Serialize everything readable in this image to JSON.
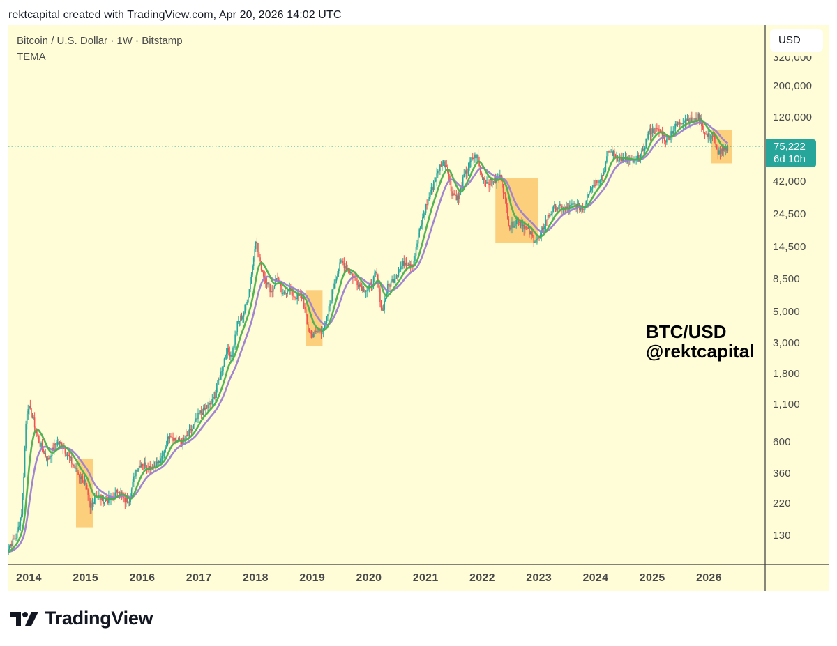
{
  "caption": "rektcapital created with TradingView.com, Apr 20, 2026 14:02 UTC",
  "legend": {
    "symbol_line": "Bitcoin / U.S. Dollar · 1W · Bitstamp",
    "indicator": "TEMA"
  },
  "price_scale": {
    "currency_button": "USD",
    "ticks": [
      "320,000",
      "200,000",
      "120,000",
      "42,000",
      "24,500",
      "14,500",
      "8,500",
      "5,000",
      "3,000",
      "1,800",
      "1,100",
      "600",
      "360",
      "220",
      "130"
    ]
  },
  "last_price": {
    "value": "75,222",
    "countdown": "6d 10h",
    "color": "#26a69a"
  },
  "time_scale": {
    "ticks": [
      "2014",
      "2015",
      "2016",
      "2017",
      "2018",
      "2019",
      "2020",
      "2021",
      "2022",
      "2023",
      "2024",
      "2025",
      "2026"
    ]
  },
  "watermark": {
    "line1": "BTC/USD",
    "line2": "@rektcapital"
  },
  "brand": {
    "name": "TradingView",
    "icon": "tradingview-logo-icon"
  },
  "colors": {
    "background": "#fefdd8",
    "up": "#26a69a",
    "down": "#ef5350",
    "tema_fast": "#4caf50",
    "tema_slow": "#9c7fcf",
    "highlight": "#fbbf5f"
  },
  "chart_data": {
    "type": "candlestick",
    "title": "Bitcoin / U.S. Dollar · 1W · Bitstamp",
    "indicator": "TEMA",
    "yscale": "log",
    "ylim": [
      70,
      400000
    ],
    "x_ticks": [
      "2014",
      "2015",
      "2016",
      "2017",
      "2018",
      "2019",
      "2020",
      "2021",
      "2022",
      "2023",
      "2024",
      "2025",
      "2026"
    ],
    "y_ticks": [
      320000,
      200000,
      120000,
      42000,
      24500,
      14500,
      8500,
      5000,
      3000,
      1800,
      1100,
      600,
      360,
      220,
      130
    ],
    "last_price": 75222,
    "price_path": [
      [
        2013.55,
        100
      ],
      [
        2013.75,
        130
      ],
      [
        2013.85,
        200
      ],
      [
        2013.92,
        900
      ],
      [
        2013.95,
        1100
      ],
      [
        2014.05,
        850
      ],
      [
        2014.15,
        600
      ],
      [
        2014.3,
        450
      ],
      [
        2014.45,
        600
      ],
      [
        2014.55,
        580
      ],
      [
        2014.7,
        450
      ],
      [
        2014.85,
        350
      ],
      [
        2014.95,
        320
      ],
      [
        2015.05,
        200
      ],
      [
        2015.15,
        260
      ],
      [
        2015.3,
        230
      ],
      [
        2015.45,
        240
      ],
      [
        2015.55,
        280
      ],
      [
        2015.65,
        230
      ],
      [
        2015.75,
        240
      ],
      [
        2015.85,
        380
      ],
      [
        2015.95,
        430
      ],
      [
        2016.1,
        400
      ],
      [
        2016.3,
        440
      ],
      [
        2016.45,
        700
      ],
      [
        2016.55,
        620
      ],
      [
        2016.7,
        610
      ],
      [
        2016.85,
        740
      ],
      [
        2016.98,
        960
      ],
      [
        2017.05,
        1000
      ],
      [
        2017.2,
        1150
      ],
      [
        2017.35,
        1800
      ],
      [
        2017.45,
        2700
      ],
      [
        2017.55,
        2500
      ],
      [
        2017.65,
        4200
      ],
      [
        2017.75,
        4800
      ],
      [
        2017.85,
        7000
      ],
      [
        2017.92,
        11000
      ],
      [
        2017.97,
        17000
      ],
      [
        2018.05,
        11000
      ],
      [
        2018.12,
        9000
      ],
      [
        2018.25,
        7000
      ],
      [
        2018.35,
        9000
      ],
      [
        2018.45,
        6500
      ],
      [
        2018.55,
        7500
      ],
      [
        2018.65,
        6500
      ],
      [
        2018.8,
        6400
      ],
      [
        2018.88,
        4000
      ],
      [
        2018.95,
        3500
      ],
      [
        2019.05,
        3600
      ],
      [
        2019.2,
        4000
      ],
      [
        2019.35,
        8000
      ],
      [
        2019.48,
        11500
      ],
      [
        2019.6,
        10200
      ],
      [
        2019.75,
        8300
      ],
      [
        2019.85,
        7500
      ],
      [
        2019.95,
        7200
      ],
      [
        2020.1,
        9500
      ],
      [
        2020.2,
        5000
      ],
      [
        2020.3,
        7500
      ],
      [
        2020.45,
        9300
      ],
      [
        2020.6,
        11500
      ],
      [
        2020.75,
        11000
      ],
      [
        2020.85,
        18000
      ],
      [
        2020.98,
        29000
      ],
      [
        2021.1,
        40000
      ],
      [
        2021.25,
        58000
      ],
      [
        2021.35,
        55000
      ],
      [
        2021.42,
        36000
      ],
      [
        2021.55,
        32000
      ],
      [
        2021.65,
        47000
      ],
      [
        2021.8,
        62000
      ],
      [
        2021.87,
        65000
      ],
      [
        2021.95,
        47000
      ],
      [
        2022.05,
        42000
      ],
      [
        2022.2,
        43000
      ],
      [
        2022.3,
        46000
      ],
      [
        2022.38,
        30000
      ],
      [
        2022.45,
        20000
      ],
      [
        2022.6,
        23000
      ],
      [
        2022.75,
        19500
      ],
      [
        2022.88,
        16500
      ],
      [
        2022.98,
        16600
      ],
      [
        2023.1,
        23000
      ],
      [
        2023.25,
        28000
      ],
      [
        2023.45,
        27000
      ],
      [
        2023.6,
        29000
      ],
      [
        2023.75,
        27000
      ],
      [
        2023.85,
        37000
      ],
      [
        2023.98,
        42500
      ],
      [
        2024.1,
        48000
      ],
      [
        2024.2,
        70000
      ],
      [
        2024.35,
        63000
      ],
      [
        2024.5,
        60000
      ],
      [
        2024.65,
        58000
      ],
      [
        2024.8,
        68000
      ],
      [
        2024.9,
        95000
      ],
      [
        2025.0,
        98000
      ],
      [
        2025.1,
        96000
      ],
      [
        2025.22,
        82000
      ],
      [
        2025.3,
        95000
      ],
      [
        2025.4,
        106000
      ],
      [
        2025.55,
        118000
      ],
      [
        2025.7,
        112000
      ],
      [
        2025.78,
        122000
      ],
      [
        2025.85,
        108000
      ],
      [
        2025.9,
        90000
      ],
      [
        2025.98,
        88000
      ],
      [
        2026.05,
        90000
      ],
      [
        2026.1,
        70000
      ],
      [
        2026.18,
        68000
      ],
      [
        2026.25,
        70000
      ],
      [
        2026.3,
        75222
      ]
    ],
    "highlight_boxes": [
      {
        "x0": 2014.8,
        "x1": 2015.1,
        "y0": 460,
        "y1": 150
      },
      {
        "x0": 2018.85,
        "x1": 2019.15,
        "y0": 7200,
        "y1": 2900
      },
      {
        "x0": 2022.2,
        "x1": 2022.95,
        "y0": 45000,
        "y1": 15500
      },
      {
        "x0": 2026.0,
        "x1": 2026.38,
        "y0": 98000,
        "y1": 57000
      }
    ]
  }
}
